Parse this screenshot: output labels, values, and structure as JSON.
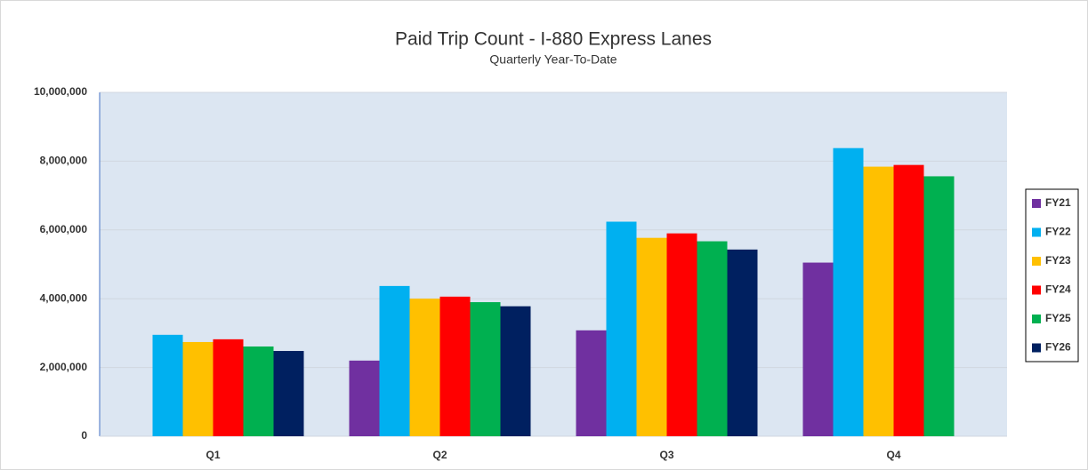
{
  "chart_data": {
    "type": "bar",
    "title": "Paid Trip Count - I-880 Express Lanes",
    "subtitle": "Quarterly Year-To-Date",
    "categories": [
      "Q1",
      "Q2",
      "Q3",
      "Q4"
    ],
    "series": [
      {
        "name": "FY21",
        "color": "#7030a0",
        "values": [
          null,
          2200000,
          3080000,
          5050000
        ]
      },
      {
        "name": "FY22",
        "color": "#00b0f0",
        "values": [
          2950000,
          4370000,
          6240000,
          8380000
        ]
      },
      {
        "name": "FY23",
        "color": "#ffc000",
        "values": [
          2740000,
          4000000,
          5770000,
          7840000
        ]
      },
      {
        "name": "FY24",
        "color": "#ff0000",
        "values": [
          2820000,
          4060000,
          5900000,
          7890000
        ]
      },
      {
        "name": "FY25",
        "color": "#00b050",
        "values": [
          2610000,
          3900000,
          5670000,
          7560000
        ]
      },
      {
        "name": "FY26",
        "color": "#002060",
        "values": [
          2480000,
          3780000,
          5430000,
          null
        ]
      }
    ],
    "ylim": [
      0,
      10000000
    ],
    "yticks": [
      0,
      {
        "value": 2000000,
        "label": "2,000,000"
      },
      {
        "value": 4000000,
        "label": "4,000,000"
      },
      {
        "value": 6000000,
        "label": "6,000,000"
      },
      {
        "value": 8000000,
        "label": "8,000,000"
      },
      {
        "value": 10000000,
        "label": "10,000,000"
      }
    ],
    "grid": true,
    "legend": "right"
  }
}
